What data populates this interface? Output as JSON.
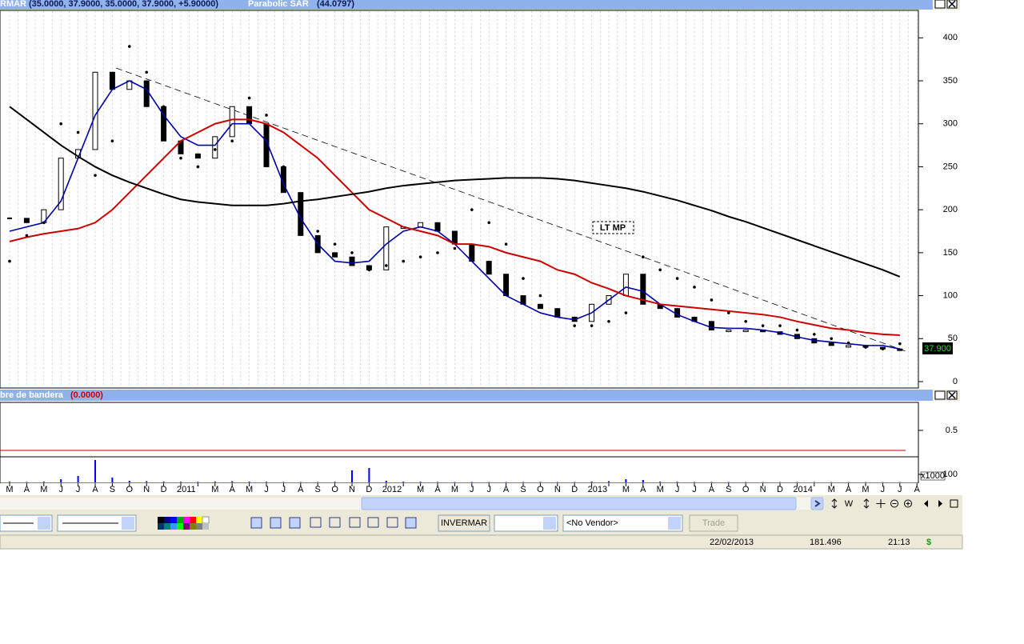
{
  "header": {
    "symbol": "RMAR",
    "ohlc": "(35.0000, 37.9000, 35.0000, 37.9000, +5.90000)",
    "sar_label": "(44.0797)"
  },
  "chart_data": {
    "type": "line",
    "categories": [
      "M",
      "A",
      "M",
      "J",
      "J",
      "A",
      "S",
      "O",
      "N",
      "D",
      "2011",
      null,
      "M",
      "A",
      "M",
      "J",
      "J",
      "A",
      "S",
      "O",
      "N",
      "D",
      "2012",
      null,
      "M",
      "A",
      "M",
      "J",
      "J",
      "A",
      "S",
      "O",
      "N",
      "D",
      "2013",
      null,
      "M",
      "A",
      "M",
      "J",
      "J",
      "A",
      "S",
      "O",
      "N",
      "D",
      "2014",
      null,
      "M",
      "A",
      "M",
      "J",
      "J",
      "A"
    ],
    "series": [
      {
        "color": "#000000",
        "style": "candle",
        "values": [
          190,
          185,
          200,
          260,
          270,
          360,
          340,
          350,
          320,
          280,
          265,
          260,
          285,
          320,
          300,
          250,
          220,
          170,
          150,
          145,
          135,
          130,
          180,
          180,
          185,
          175,
          160,
          140,
          125,
          100,
          90,
          85,
          75,
          70,
          90,
          100,
          125,
          90,
          85,
          75,
          70,
          60,
          60,
          60,
          58,
          55,
          50,
          45,
          42,
          42,
          40,
          38,
          37.9,
          null
        ]
      },
      {
        "color": "#0000a8",
        "style": "line",
        "values": [
          175,
          180,
          185,
          210,
          260,
          310,
          340,
          350,
          340,
          310,
          285,
          275,
          275,
          300,
          300,
          280,
          230,
          190,
          160,
          140,
          138,
          140,
          160,
          175,
          180,
          175,
          160,
          140,
          120,
          100,
          90,
          80,
          75,
          72,
          80,
          95,
          110,
          105,
          90,
          78,
          70,
          63,
          62,
          62,
          60,
          57,
          52,
          48,
          46,
          44,
          42,
          42,
          38,
          null
        ]
      },
      {
        "color": "#cc0000",
        "style": "line",
        "values": [
          163,
          168,
          172,
          175,
          178,
          185,
          200,
          220,
          240,
          260,
          280,
          290,
          300,
          305,
          305,
          300,
          290,
          275,
          260,
          240,
          220,
          200,
          190,
          180,
          175,
          170,
          160,
          160,
          157,
          150,
          145,
          140,
          130,
          125,
          115,
          108,
          100,
          95,
          90,
          88,
          86,
          84,
          82,
          80,
          78,
          75,
          70,
          66,
          62,
          60,
          57,
          55,
          54,
          null
        ]
      },
      {
        "color": "#000000",
        "style": "line",
        "values": [
          320,
          305,
          290,
          275,
          262,
          250,
          240,
          232,
          225,
          218,
          212,
          209,
          207,
          205,
          205,
          205,
          207,
          210,
          212,
          215,
          218,
          221,
          225,
          228,
          230,
          232,
          234,
          235,
          236,
          237,
          237,
          237,
          236,
          234,
          231,
          228,
          225,
          221,
          216,
          211,
          205,
          199,
          192,
          186,
          179,
          172,
          165,
          158,
          151,
          144,
          137,
          130,
          122,
          null
        ]
      },
      {
        "name": "Parabolic SAR",
        "color": "#000000",
        "style": "dots",
        "values": [
          140,
          170,
          185,
          300,
          290,
          240,
          280,
          390,
          360,
          320,
          260,
          250,
          270,
          280,
          330,
          310,
          250,
          200,
          175,
          160,
          150,
          130,
          135,
          140,
          145,
          150,
          155,
          200,
          185,
          160,
          120,
          100,
          80,
          65,
          65,
          70,
          80,
          145,
          130,
          120,
          110,
          95,
          80,
          70,
          65,
          65,
          60,
          55,
          50,
          45,
          40,
          38,
          44.0797,
          null
        ]
      }
    ],
    "ylim": [
      0,
      431
    ],
    "yticks": [
      0,
      50,
      100,
      150,
      200,
      250,
      300,
      350,
      400
    ],
    "grid": true,
    "last_value_label": "37.900",
    "annotation": "LT MP"
  },
  "indicator_panel": {
    "title": "bre de bandera",
    "value_label": "(0.0000)",
    "value": 0,
    "color": "#c00000",
    "ylim": [
      0,
      1
    ],
    "yticks": [
      0.5
    ]
  },
  "volume_panel": {
    "color": "#0000ff",
    "values": [
      8,
      6,
      10,
      40,
      80,
      280,
      60,
      20,
      15,
      10,
      8,
      8,
      12,
      15,
      10,
      8,
      6,
      5,
      5,
      8,
      150,
      180,
      20,
      10,
      8,
      6,
      5,
      5,
      5,
      5,
      5,
      6,
      5,
      5,
      10,
      15,
      40,
      30,
      10,
      8,
      5,
      5,
      5,
      5,
      4,
      4,
      5,
      5,
      4,
      4,
      4,
      4,
      4,
      null
    ],
    "ylim": [
      0,
      300
    ],
    "yticks": [
      100
    ],
    "unit_label": "x1000"
  },
  "scroll_tools": {
    "week": "W"
  },
  "toolbar": {
    "symbol": "INVERMAR",
    "vendor": "<No Vendor>",
    "trade": "Trade"
  },
  "status_bar": {
    "date": "22/02/2013",
    "value": "181.496",
    "time": "21:13",
    "currency": "$"
  }
}
